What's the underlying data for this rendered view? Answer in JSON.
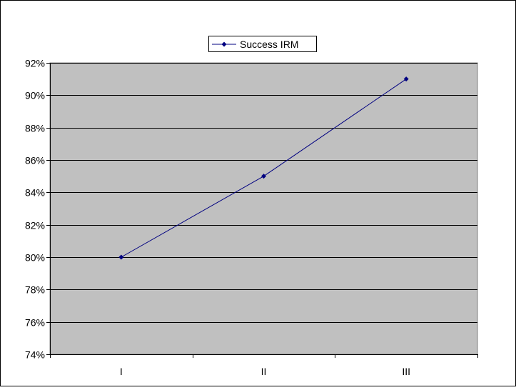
{
  "chart_data": {
    "type": "line",
    "categories": [
      "I",
      "II",
      "III"
    ],
    "series": [
      {
        "name": "Success IRM",
        "values": [
          80,
          85,
          91
        ],
        "color": "#000080",
        "marker": "diamond"
      }
    ],
    "ylim": [
      74,
      92
    ],
    "ytick_step": 2,
    "ytick_labels": [
      "74%",
      "76%",
      "78%",
      "80%",
      "82%",
      "84%",
      "86%",
      "88%",
      "90%",
      "92%"
    ],
    "grid": "horizontal",
    "legend_position": "top-center",
    "plot_background": "#c0c0c0",
    "gridline_color": "#000000"
  }
}
